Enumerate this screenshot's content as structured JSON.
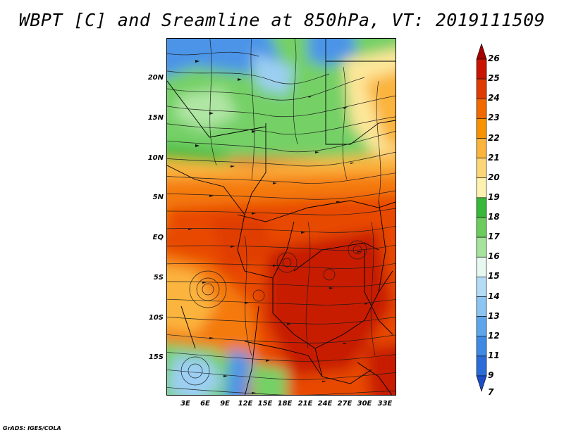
{
  "title": "WBPT [C] and Sreamline at 850hPa, VT: 2019111509",
  "footer": "GrADS: IGES/COLA",
  "y_ticks": [
    "20N",
    "15N",
    "10N",
    "5N",
    "EQ",
    "5S",
    "10S",
    "15S"
  ],
  "x_ticks": [
    "3E",
    "6E",
    "9E",
    "12E",
    "15E",
    "18E",
    "21E",
    "24E",
    "27E",
    "30E",
    "33E"
  ],
  "colorbar": {
    "labels": [
      "26",
      "25",
      "24",
      "23",
      "22",
      "21",
      "20",
      "19",
      "18",
      "17",
      "16",
      "15",
      "14",
      "13",
      "12",
      "11",
      "9",
      "7"
    ],
    "colors": [
      "#a50000",
      "#c81400",
      "#e03c00",
      "#f06a00",
      "#f89200",
      "#fbb43c",
      "#fdd67a",
      "#fff2b0",
      "#38b838",
      "#6ccd5e",
      "#a6e39c",
      "#e6f8ef",
      "#b4dcf7",
      "#8cc4f2",
      "#5ea6ec",
      "#3e8ae4",
      "#2a6cd8",
      "#1c4ec8"
    ]
  },
  "map": {
    "colors": {
      "deep_red": "#c81e00",
      "red_orange": "#e84800",
      "orange": "#f47a10",
      "light_orange": "#fbb43c",
      "yellow": "#fde79a",
      "green_dark": "#3cb83c",
      "green": "#74d066",
      "green_light": "#b0e6a4",
      "blue_light": "#9ccff3",
      "blue": "#4c94e8",
      "border": "#000000"
    }
  }
}
